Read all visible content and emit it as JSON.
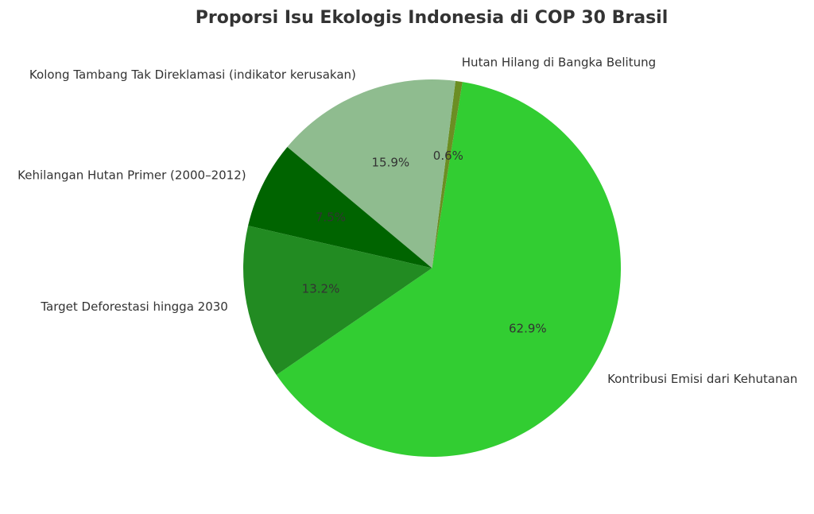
{
  "chart_data": {
    "type": "pie",
    "title": "Proporsi Isu Ekologis Indonesia di COP 30 Brasil",
    "categories": [
      "Kontribusi Emisi dari Kehutanan",
      "Hutan Hilang di Bangka Belitung",
      "Kolong Tambang Tak Direklamasi (indikator kerusakan)",
      "Kehilangan Hutan Primer (2000–2012)",
      "Target Deforestasi hingga 2030"
    ],
    "values": [
      62.9,
      0.6,
      15.9,
      7.5,
      13.2
    ],
    "value_labels": [
      "62.9%",
      "0.6%",
      "15.9%",
      "7.5%",
      "13.2%"
    ],
    "colors": [
      "#32cd32",
      "#6b8e23",
      "#8fbc8f",
      "#006400",
      "#228b22"
    ]
  }
}
